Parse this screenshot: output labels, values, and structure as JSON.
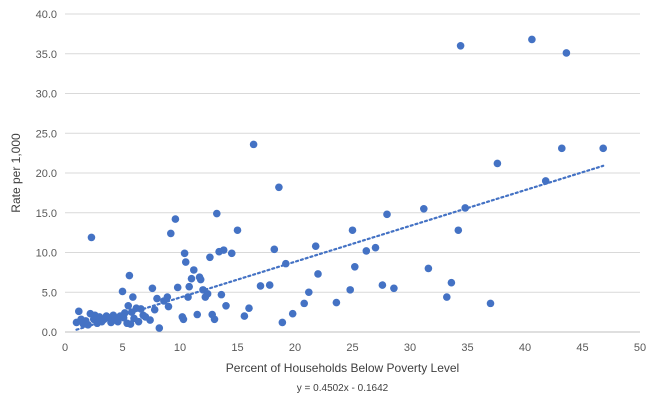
{
  "chart_data": {
    "type": "scatter",
    "title": "",
    "xlabel": "Percent of Households Below Poverty Level",
    "ylabel": "Rate per 1,000",
    "xlim": [
      0,
      50
    ],
    "ylim": [
      0,
      40
    ],
    "x_ticks": [
      "0",
      "5",
      "10",
      "15",
      "20",
      "25",
      "30",
      "35",
      "40",
      "45",
      "50"
    ],
    "y_ticks": [
      "0.0",
      "5.0",
      "10.0",
      "15.0",
      "20.0",
      "25.0",
      "30.0",
      "35.0",
      "40.0"
    ],
    "grid": "horizontal",
    "marker_color": "#4472c4",
    "trendline": {
      "type": "linear",
      "slope": 0.4502,
      "intercept": -0.1642,
      "style": "dotted",
      "color": "#4472c4",
      "equation": "y = 0.4502x - 0.1642"
    },
    "points": [
      [
        1.0,
        1.2
      ],
      [
        1.2,
        2.6
      ],
      [
        1.4,
        1.6
      ],
      [
        1.6,
        1.0
      ],
      [
        1.8,
        1.4
      ],
      [
        2.0,
        0.9
      ],
      [
        2.2,
        2.3
      ],
      [
        2.3,
        11.9
      ],
      [
        2.5,
        1.6
      ],
      [
        2.6,
        2.1
      ],
      [
        2.8,
        1.1
      ],
      [
        3.0,
        1.9
      ],
      [
        3.2,
        1.3
      ],
      [
        3.4,
        1.6
      ],
      [
        3.6,
        2.0
      ],
      [
        3.8,
        1.8
      ],
      [
        4.0,
        1.2
      ],
      [
        4.2,
        2.1
      ],
      [
        4.4,
        1.5
      ],
      [
        4.6,
        1.3
      ],
      [
        4.8,
        2.0
      ],
      [
        5.0,
        5.1
      ],
      [
        5.1,
        1.8
      ],
      [
        5.2,
        2.4
      ],
      [
        5.4,
        1.1
      ],
      [
        5.5,
        3.3
      ],
      [
        5.6,
        7.1
      ],
      [
        5.7,
        1.0
      ],
      [
        5.8,
        2.5
      ],
      [
        5.9,
        4.4
      ],
      [
        6.0,
        1.7
      ],
      [
        6.2,
        3.0
      ],
      [
        6.4,
        1.3
      ],
      [
        6.6,
        2.9
      ],
      [
        6.8,
        2.1
      ],
      [
        7.0,
        1.9
      ],
      [
        7.4,
        1.5
      ],
      [
        7.6,
        5.5
      ],
      [
        7.8,
        2.8
      ],
      [
        8.0,
        4.2
      ],
      [
        8.2,
        0.5
      ],
      [
        8.6,
        3.9
      ],
      [
        8.9,
        4.4
      ],
      [
        9.0,
        3.2
      ],
      [
        9.2,
        12.4
      ],
      [
        9.6,
        14.2
      ],
      [
        9.8,
        5.6
      ],
      [
        10.2,
        1.9
      ],
      [
        10.3,
        1.6
      ],
      [
        10.4,
        9.9
      ],
      [
        10.5,
        8.8
      ],
      [
        10.7,
        4.4
      ],
      [
        10.8,
        5.7
      ],
      [
        11.0,
        6.7
      ],
      [
        11.2,
        7.8
      ],
      [
        11.5,
        2.2
      ],
      [
        11.7,
        6.9
      ],
      [
        11.8,
        6.6
      ],
      [
        12.0,
        5.3
      ],
      [
        12.2,
        4.4
      ],
      [
        12.4,
        4.8
      ],
      [
        12.6,
        9.4
      ],
      [
        12.8,
        2.2
      ],
      [
        13.0,
        1.6
      ],
      [
        13.2,
        14.9
      ],
      [
        13.4,
        10.1
      ],
      [
        13.6,
        4.7
      ],
      [
        13.8,
        10.3
      ],
      [
        14.0,
        3.3
      ],
      [
        14.5,
        9.9
      ],
      [
        15.0,
        12.8
      ],
      [
        15.6,
        2.0
      ],
      [
        16.0,
        3.0
      ],
      [
        16.4,
        23.6
      ],
      [
        17.0,
        5.8
      ],
      [
        17.8,
        5.9
      ],
      [
        18.2,
        10.4
      ],
      [
        18.6,
        18.2
      ],
      [
        18.9,
        1.2
      ],
      [
        19.2,
        8.6
      ],
      [
        19.8,
        2.3
      ],
      [
        20.8,
        3.6
      ],
      [
        21.2,
        5.0
      ],
      [
        21.8,
        10.8
      ],
      [
        22.0,
        7.3
      ],
      [
        23.6,
        3.7
      ],
      [
        24.8,
        5.3
      ],
      [
        25.0,
        12.8
      ],
      [
        25.2,
        8.2
      ],
      [
        26.2,
        10.2
      ],
      [
        27.0,
        10.6
      ],
      [
        27.6,
        5.9
      ],
      [
        28.0,
        14.8
      ],
      [
        28.6,
        5.5
      ],
      [
        31.2,
        15.5
      ],
      [
        31.6,
        8.0
      ],
      [
        33.2,
        4.4
      ],
      [
        33.6,
        6.2
      ],
      [
        34.2,
        12.8
      ],
      [
        34.4,
        36.0
      ],
      [
        34.8,
        15.6
      ],
      [
        37.0,
        3.6
      ],
      [
        37.6,
        21.2
      ],
      [
        40.6,
        36.8
      ],
      [
        41.8,
        19.0
      ],
      [
        43.2,
        23.1
      ],
      [
        43.6,
        35.1
      ],
      [
        46.8,
        23.1
      ]
    ]
  }
}
